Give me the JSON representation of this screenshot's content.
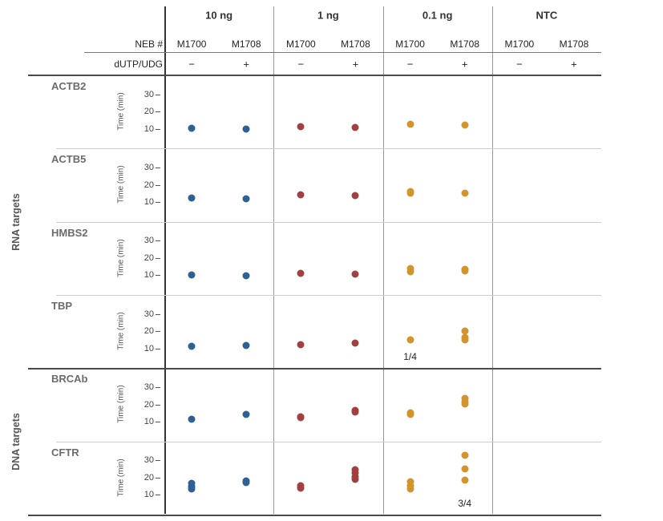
{
  "chart_data": {
    "type": "scatter",
    "description": "Small-multiples dot plot of amplification time (min) per target, template/dose group and enzyme",
    "ylabel": "Time (min)",
    "yticks_top_to_bottom": [
      30,
      20,
      10
    ],
    "ylim": [
      0,
      40
    ],
    "grid": false,
    "header": {
      "neb_label": "NEB #",
      "udg_label": "dUTP/UDG",
      "groups": [
        {
          "dose": "10 ng",
          "enzymes": [
            "M1700",
            "M1708"
          ],
          "udg": [
            "−",
            "+"
          ]
        },
        {
          "dose": "1 ng",
          "enzymes": [
            "M1700",
            "M1708"
          ],
          "udg": [
            "−",
            "+"
          ]
        },
        {
          "dose": "0.1 ng",
          "enzymes": [
            "M1700",
            "M1708"
          ],
          "udg": [
            "−",
            "+"
          ]
        },
        {
          "dose": "NTC",
          "enzymes": [
            "M1700",
            "M1708"
          ],
          "udg": [
            "−",
            "+"
          ]
        }
      ]
    },
    "colors_by_group": [
      "#2e6094",
      "#a04040",
      "#d2952e",
      "#888888"
    ],
    "sections": [
      {
        "label": "RNA targets",
        "targets": [
          "ACTB2",
          "ACTB5",
          "HMBS2",
          "TBP"
        ]
      },
      {
        "label": "DNA targets",
        "targets": [
          "BRCAb",
          "CFTR"
        ]
      }
    ],
    "column_order": [
      "10 ng M1700",
      "10 ng M1708",
      "1 ng M1700",
      "1 ng M1708",
      "0.1 ng M1700",
      "0.1 ng M1708",
      "NTC M1700",
      "NTC M1708"
    ],
    "rows": [
      {
        "target": "ACTB2",
        "section": "RNA targets",
        "values": [
          [
            10.2
          ],
          [
            9.8
          ],
          [
            11.3
          ],
          [
            10.9
          ],
          [
            12.8
          ],
          [
            12.1
          ],
          [],
          []
        ]
      },
      {
        "target": "ACTB5",
        "section": "RNA targets",
        "values": [
          [
            12.4
          ],
          [
            11.9
          ],
          [
            14.3
          ],
          [
            13.8
          ],
          [
            15.9,
            15.1
          ],
          [
            15.3
          ],
          [],
          []
        ]
      },
      {
        "target": "HMBS2",
        "section": "RNA targets",
        "values": [
          [
            10.2
          ],
          [
            9.6
          ],
          [
            11.0
          ],
          [
            10.6
          ],
          [
            14.1,
            11.9
          ],
          [
            13.3,
            12.5
          ],
          [],
          []
        ]
      },
      {
        "target": "TBP",
        "section": "RNA targets",
        "values": [
          [
            11.1
          ],
          [
            11.7
          ],
          [
            12.1
          ],
          [
            12.9
          ],
          [
            15.0
          ],
          [
            20.0,
            16.6,
            15.2
          ],
          [],
          []
        ]
      },
      {
        "target": "BRCAb",
        "section": "DNA targets",
        "values": [
          [
            11.5
          ],
          [
            14.3
          ],
          [
            13.0,
            12.3
          ],
          [
            16.7,
            15.6
          ],
          [
            15.3,
            14.2
          ],
          [
            23.5,
            21.8,
            20.3
          ],
          [],
          []
        ]
      },
      {
        "target": "CFTR",
        "section": "DNA targets",
        "values": [
          [
            16.5,
            14.8,
            13.2
          ],
          [
            17.9,
            17.1
          ],
          [
            15.4,
            13.7
          ],
          [
            24.6,
            22.6,
            20.6,
            18.9
          ],
          [
            17.5,
            15.3,
            13.4
          ],
          [
            32.8,
            25.2,
            18.7
          ],
          [],
          []
        ]
      }
    ],
    "annotations": [
      {
        "target": "TBP",
        "column_index": 4,
        "text": "1/4"
      },
      {
        "target": "CFTR",
        "column_index": 5,
        "text": "3/4"
      }
    ]
  }
}
